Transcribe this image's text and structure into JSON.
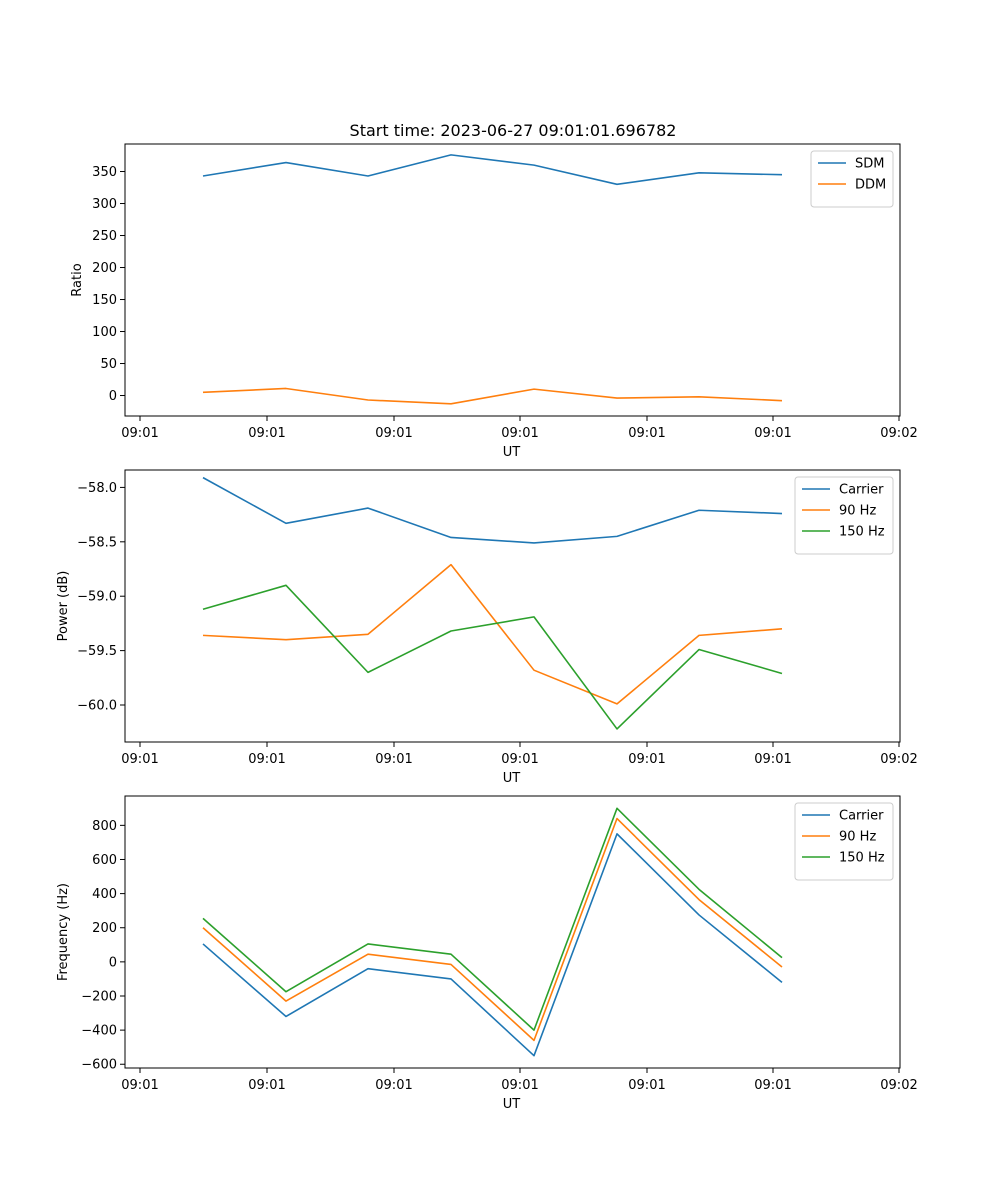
{
  "figure": {
    "title": "Start time: 2023-06-27 09:01:01.696782"
  },
  "colors": {
    "blue": "#1f77b4",
    "orange": "#ff7f0e",
    "green": "#2ca02c"
  },
  "chart_data": [
    {
      "type": "line",
      "title": "Start time: 2023-06-27 09:01:01.696782",
      "xlabel": "UT",
      "ylabel": "Ratio",
      "x_tick_labels": [
        "09:01",
        "09:01",
        "09:01",
        "09:01",
        "09:01",
        "09:01",
        "09:02"
      ],
      "ylim": [
        -32,
        393
      ],
      "yticks": [
        0,
        50,
        100,
        150,
        200,
        250,
        300,
        350
      ],
      "legend": "top-right",
      "series": [
        {
          "name": "SDM",
          "color": "#1f77b4",
          "values": [
            343,
            364,
            343,
            376,
            360,
            330,
            348,
            345
          ]
        },
        {
          "name": "DDM",
          "color": "#ff7f0e",
          "values": [
            5,
            11,
            -7,
            -13,
            10,
            -4,
            -2,
            -8
          ]
        }
      ]
    },
    {
      "type": "line",
      "title": "",
      "xlabel": "UT",
      "ylabel": "Power (dB)",
      "x_tick_labels": [
        "09:01",
        "09:01",
        "09:01",
        "09:01",
        "09:01",
        "09:01",
        "09:02"
      ],
      "ylim": [
        -60.34,
        -57.84
      ],
      "yticks": [
        -60.0,
        -59.5,
        -59.0,
        -58.5,
        -58.0
      ],
      "legend": "top-right",
      "series": [
        {
          "name": "Carrier",
          "color": "#1f77b4",
          "values": [
            -57.91,
            -58.33,
            -58.19,
            -58.46,
            -58.51,
            -58.45,
            -58.21,
            -58.24
          ]
        },
        {
          "name": "90 Hz",
          "color": "#ff7f0e",
          "values": [
            -59.36,
            -59.4,
            -59.35,
            -58.71,
            -59.68,
            -59.99,
            -59.36,
            -59.3
          ]
        },
        {
          "name": "150 Hz",
          "color": "#2ca02c",
          "values": [
            -59.12,
            -58.9,
            -59.7,
            -59.32,
            -59.19,
            -60.22,
            -59.49,
            -59.71
          ]
        }
      ]
    },
    {
      "type": "line",
      "title": "",
      "xlabel": "UT",
      "ylabel": "Frequency (Hz)",
      "x_tick_labels": [
        "09:01",
        "09:01",
        "09:01",
        "09:01",
        "09:01",
        "09:01",
        "09:02"
      ],
      "ylim": [
        -622,
        972
      ],
      "yticks": [
        -600,
        -400,
        -200,
        0,
        200,
        400,
        600,
        800
      ],
      "legend": "top-right",
      "series": [
        {
          "name": "Carrier",
          "color": "#1f77b4",
          "values": [
            105,
            -320,
            -40,
            -100,
            -550,
            750,
            275,
            -120
          ]
        },
        {
          "name": "90 Hz",
          "color": "#ff7f0e",
          "values": [
            200,
            -230,
            45,
            -15,
            -460,
            840,
            365,
            -30
          ]
        },
        {
          "name": "150 Hz",
          "color": "#2ca02c",
          "values": [
            255,
            -175,
            105,
            45,
            -400,
            900,
            425,
            25
          ]
        }
      ]
    }
  ]
}
